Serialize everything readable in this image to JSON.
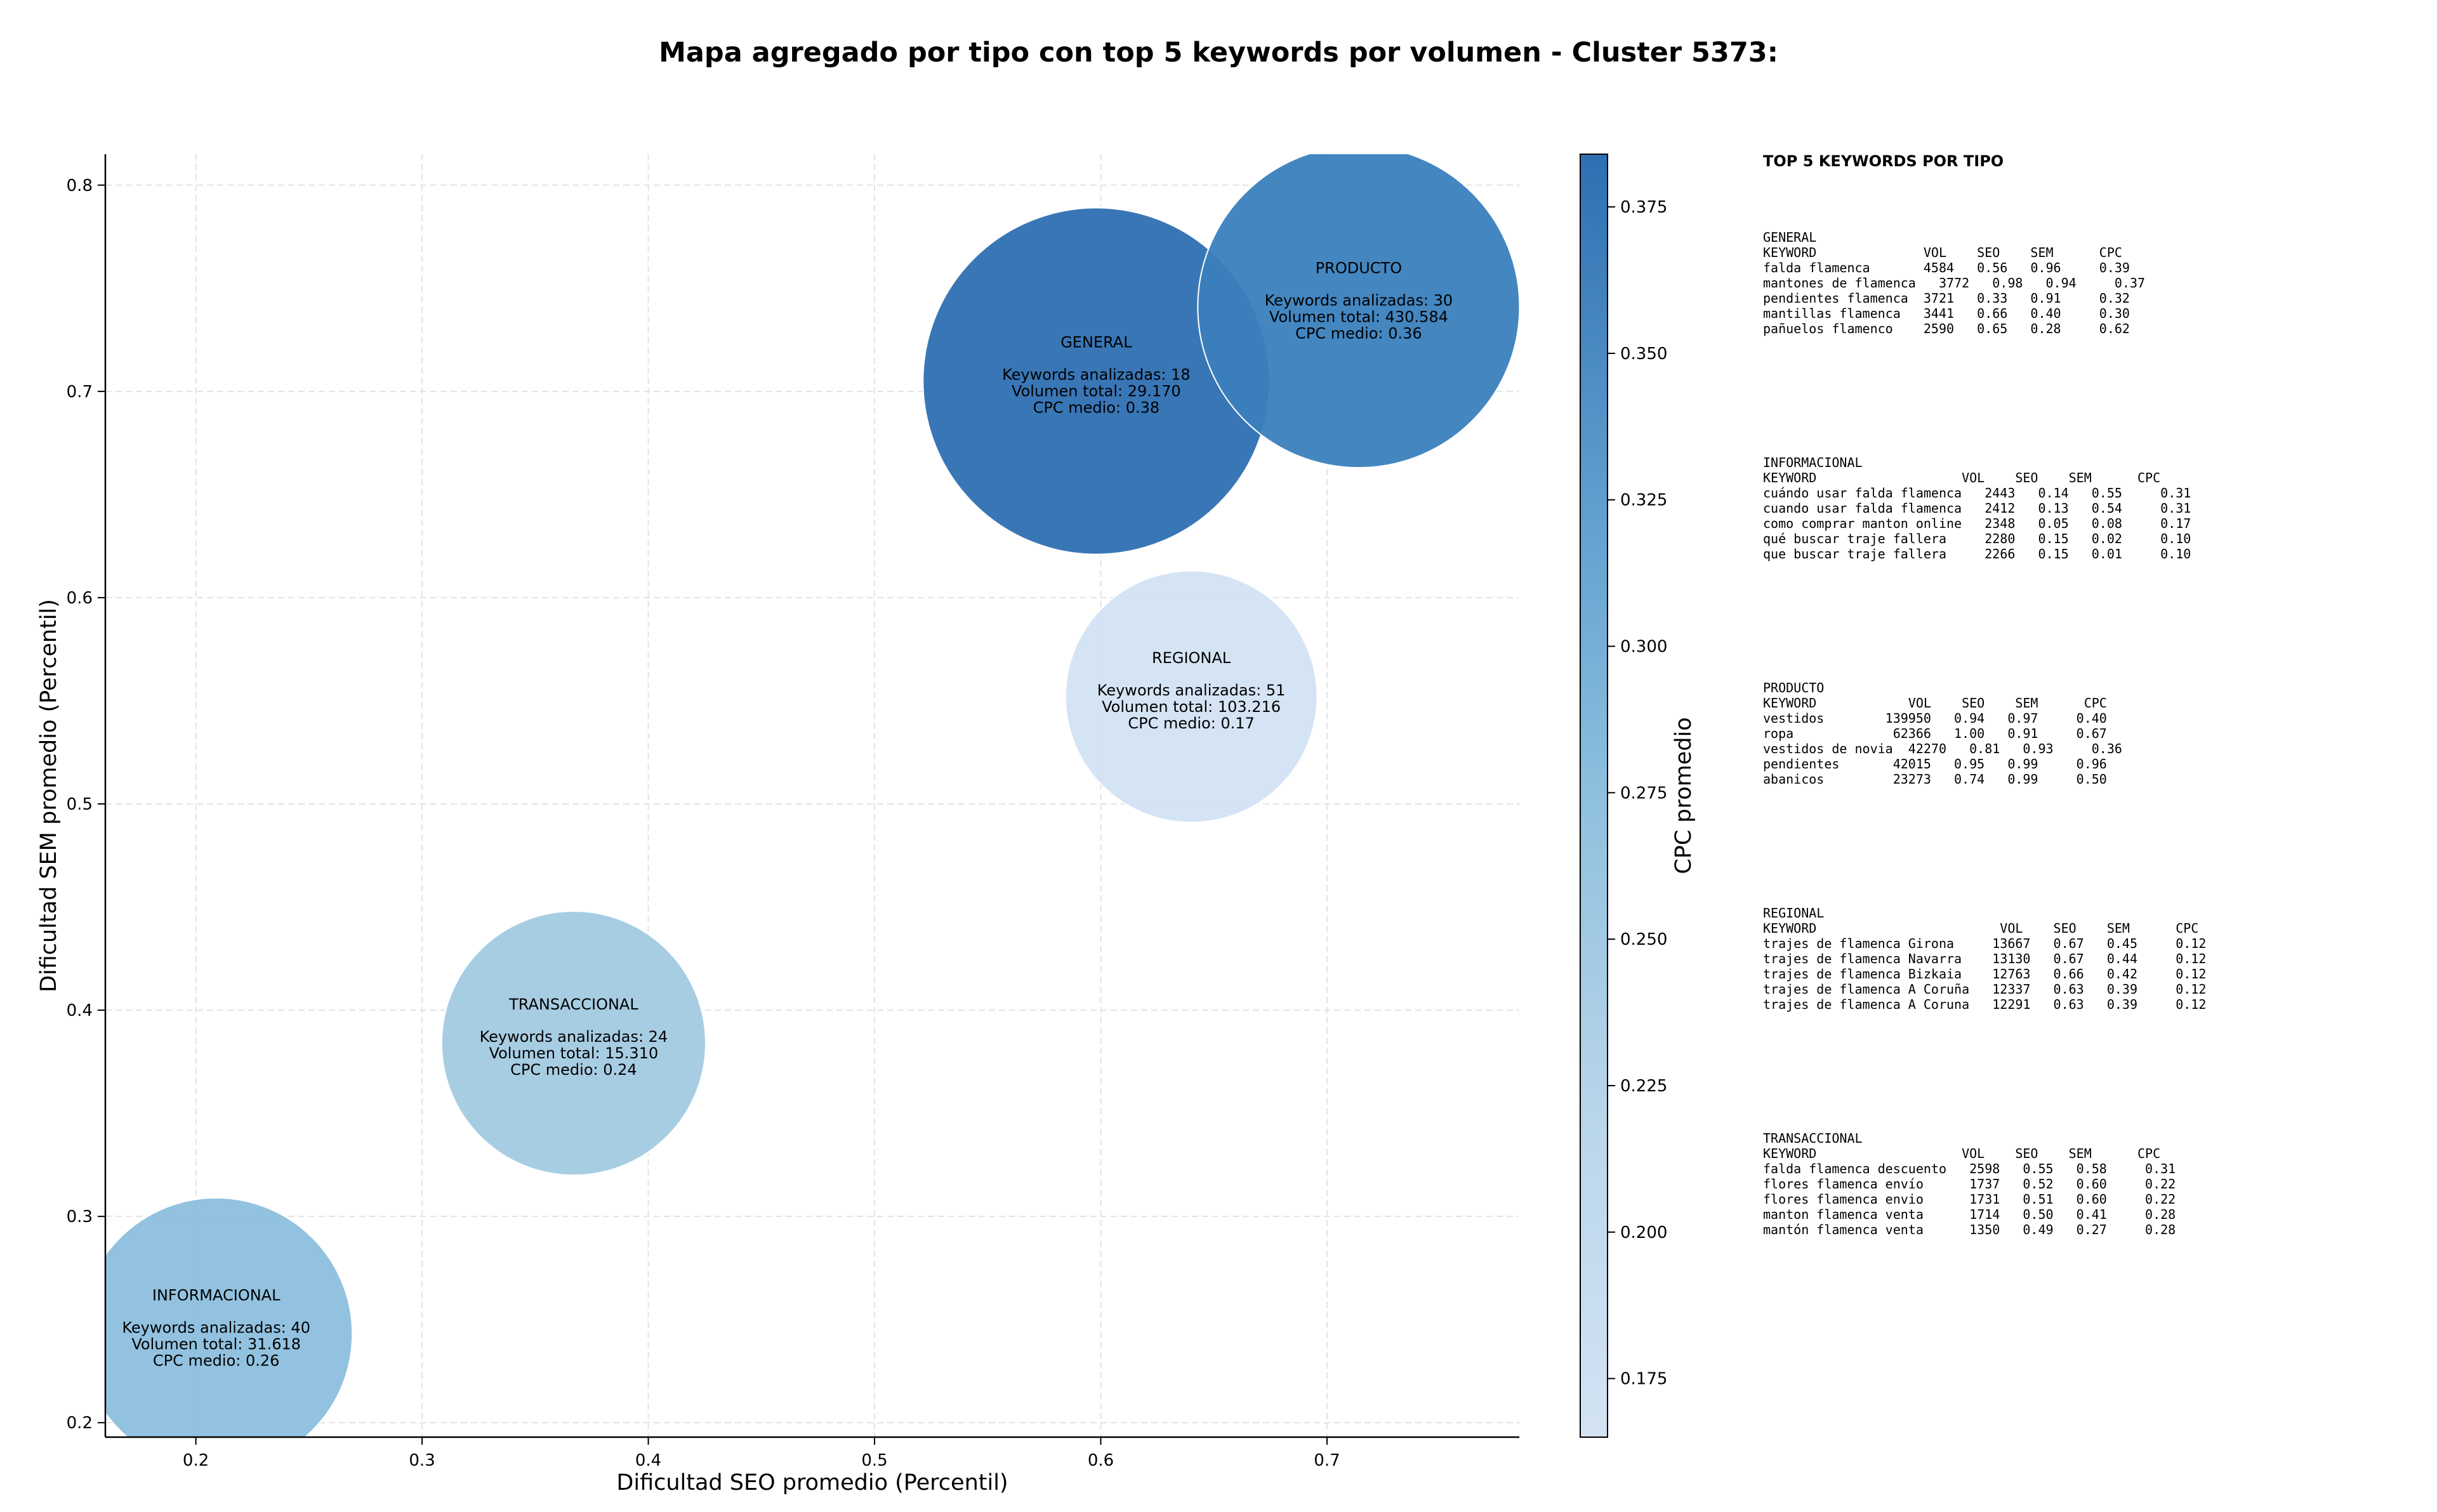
{
  "chart_data": {
    "type": "scatter",
    "subtype": "bubble",
    "title": "Mapa agregado por tipo con top 5 keywords por volumen - Cluster 5373:",
    "xlabel": "Dificultad SEO promedio (Percentil)",
    "ylabel": "Dificultad SEM promedio (Percentil)",
    "xlim": [
      0.16,
      0.785
    ],
    "ylim": [
      0.193,
      0.815
    ],
    "xticks": [
      "0.2",
      "0.3",
      "0.4",
      "0.5",
      "0.6",
      "0.7"
    ],
    "yticks": [
      "0.2",
      "0.3",
      "0.4",
      "0.5",
      "0.6",
      "0.7",
      "0.8"
    ],
    "grid": true,
    "colorbar": {
      "label": "CPC promedio",
      "range": [
        0.165,
        0.384
      ],
      "ticks": [
        "0.175",
        "0.200",
        "0.225",
        "0.250",
        "0.275",
        "0.300",
        "0.325",
        "0.350",
        "0.375"
      ],
      "color_low": "#d3e3f3",
      "color_high": "#2e6fb2"
    },
    "bubbles": [
      {
        "tipo": "GENERAL",
        "seo": 0.598,
        "sem": 0.705,
        "keywords_label": "Keywords analizadas: 18",
        "volumen_label": "Volumen total: 29.170",
        "cpc_label": "CPC medio: 0.38",
        "cpc": 0.38,
        "size_sem": 0.084,
        "color": "#2e6fb2"
      },
      {
        "tipo": "PRODUCTO",
        "seo": 0.714,
        "sem": 0.741,
        "keywords_label": "Keywords analizadas: 30",
        "volumen_label": "Volumen total: 430.584",
        "cpc_label": "CPC medio: 0.36",
        "cpc": 0.36,
        "size_sem": 0.078,
        "color": "#3a7fbd"
      },
      {
        "tipo": "REGIONAL",
        "seo": 0.64,
        "sem": 0.552,
        "keywords_label": "Keywords analizadas: 51",
        "volumen_label": "Volumen total: 103.216",
        "cpc_label": "CPC medio: 0.17",
        "cpc": 0.17,
        "size_sem": 0.061,
        "color": "#d3e3f3"
      },
      {
        "tipo": "TRANSACCIONAL",
        "seo": 0.367,
        "sem": 0.384,
        "keywords_label": "Keywords analizadas: 24",
        "volumen_label": "Volumen total: 15.310",
        "cpc_label": "CPC medio: 0.24",
        "cpc": 0.24,
        "size_sem": 0.064,
        "color": "#a2cae2"
      },
      {
        "tipo": "INFORMACIONAL",
        "seo": 0.209,
        "sem": 0.243,
        "keywords_label": "Keywords analizadas: 40",
        "volumen_label": "Volumen total: 31.618",
        "cpc_label": "CPC medio: 0.26",
        "cpc": 0.26,
        "size_sem": 0.066,
        "color": "#8cbfde"
      }
    ]
  },
  "side_panel": {
    "heading": "TOP 5 KEYWORDS POR TIPO",
    "groups": [
      {
        "name": "GENERAL",
        "header": "KEYWORD              VOL    SEO    SEM      CPC",
        "rows": [
          "falda flamenca       4584   0.56   0.96     0.39",
          "mantones de flamenca   3772   0.98   0.94     0.37",
          "pendientes flamenca  3721   0.33   0.91     0.32",
          "mantillas flamenca   3441   0.66   0.40     0.30",
          "pañuelos flamenco    2590   0.65   0.28     0.62"
        ]
      },
      {
        "name": "INFORMACIONAL",
        "header": "KEYWORD                   VOL    SEO    SEM      CPC",
        "rows": [
          "cuándo usar falda flamenca   2443   0.14   0.55     0.31",
          "cuando usar falda flamenca   2412   0.13   0.54     0.31",
          "como comprar manton online   2348   0.05   0.08     0.17",
          "qué buscar traje fallera     2280   0.15   0.02     0.10",
          "que buscar traje fallera     2266   0.15   0.01     0.10"
        ]
      },
      {
        "name": "PRODUCTO",
        "header": "KEYWORD            VOL    SEO    SEM      CPC",
        "rows": [
          "vestidos        139950   0.94   0.97     0.40",
          "ropa             62366   1.00   0.91     0.67",
          "vestidos de novia  42270   0.81   0.93     0.36",
          "pendientes       42015   0.95   0.99     0.96",
          "abanicos         23273   0.74   0.99     0.50"
        ]
      },
      {
        "name": "REGIONAL",
        "header": "KEYWORD                        VOL    SEO    SEM      CPC",
        "rows": [
          "trajes de flamenca Girona     13667   0.67   0.45     0.12",
          "trajes de flamenca Navarra    13130   0.67   0.44     0.12",
          "trajes de flamenca Bizkaia    12763   0.66   0.42     0.12",
          "trajes de flamenca A Coruña   12337   0.63   0.39     0.12",
          "trajes de flamenca A Coruna   12291   0.63   0.39     0.12"
        ]
      },
      {
        "name": "TRANSACCIONAL",
        "header": "KEYWORD                   VOL    SEO    SEM      CPC",
        "rows": [
          "falda flamenca descuento   2598   0.55   0.58     0.31",
          "flores flamenca envío      1737   0.52   0.60     0.22",
          "flores flamenca envio      1731   0.51   0.60     0.22",
          "manton flamenca venta      1714   0.50   0.41     0.28",
          "mantón flamenca venta      1350   0.49   0.27     0.28"
        ]
      }
    ]
  }
}
